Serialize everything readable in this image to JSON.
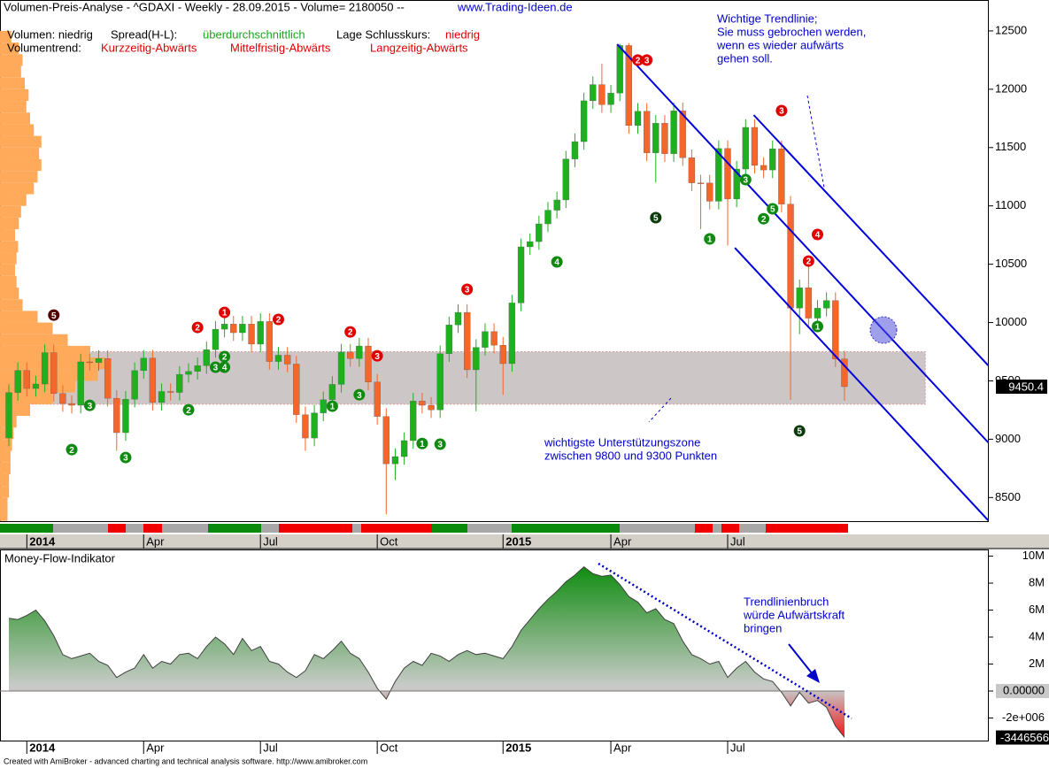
{
  "header": {
    "title": "Volumen-Preis-Analyse - ^GDAXI - Weekly - 28.09.2015 - Volume= 2180050 --",
    "website": "www.Trading-Ideen.de",
    "volume": "Volumen: niedrig",
    "spread_label": "Spread(H-L):",
    "spread_value": "überdurchschnittlich",
    "close_label": "Lage Schlusskurs:",
    "close_value": "niedrig",
    "trend_label": "Volumentrend:",
    "trend_short": "Kurzzeitig-Abwärts",
    "trend_mid": "Mittelfristig-Abwärts",
    "trend_long": "Langzeitig-Abwärts"
  },
  "footer": "Created with AmiBroker - advanced charting and technical analysis software. http://www.amibroker.com",
  "chart_data": [
    {
      "type": "candlestick",
      "categories": [
        null,
        null,
        "2014",
        null,
        null,
        null,
        null,
        null,
        null,
        null,
        null,
        null,
        null,
        null,
        null,
        "Apr",
        null,
        null,
        null,
        null,
        null,
        null,
        null,
        null,
        null,
        null,
        null,
        null,
        "Jul",
        null,
        null,
        null,
        null,
        null,
        null,
        null,
        null,
        null,
        null,
        null,
        null,
        "Oct",
        null,
        null,
        null,
        null,
        null,
        null,
        null,
        null,
        null,
        null,
        null,
        null,
        null,
        "2015",
        null,
        null,
        null,
        null,
        null,
        null,
        null,
        null,
        null,
        null,
        null,
        "Apr",
        null,
        null,
        null,
        null,
        null,
        null,
        null,
        null,
        null,
        null,
        null,
        null,
        "Jul",
        null,
        null,
        null,
        null,
        null,
        null,
        null,
        null,
        null,
        null,
        null,
        null,
        null
      ],
      "open": [
        9010,
        9400,
        9589,
        9435,
        9473,
        9742,
        9392,
        9306,
        9291,
        9663,
        9657,
        9692,
        9351,
        9056,
        9343,
        9588,
        9695,
        9315,
        9409,
        9401,
        9556,
        9581,
        9630,
        9768,
        9943,
        9987,
        9913,
        9987,
        9815,
        10009,
        9666,
        9720,
        9644,
        9210,
        9010,
        9225,
        9339,
        9470,
        9747,
        9691,
        9799,
        9490,
        9195,
        8788,
        8851,
        8988,
        9327,
        9291,
        9252,
        9733,
        9980,
        10087,
        9595,
        9787,
        9923,
        9806,
        9648,
        10168,
        10649,
        10694,
        10846,
        10963,
        11051,
        11402,
        11551,
        11901,
        12040,
        11868,
        11967,
        12375,
        11689,
        11811,
        11454,
        11709,
        11447,
        11815,
        11413,
        11197,
        11196,
        11040,
        11492,
        11059,
        11316,
        11673,
        11347,
        11308,
        11490,
        11015,
        10124,
        10298,
        10038,
        10123,
        10189,
        9688
      ],
      "high": [
        9470,
        9659,
        9659,
        9543,
        9812,
        9812,
        9462,
        9376,
        9733,
        9733,
        9762,
        9762,
        9421,
        9413,
        9658,
        9765,
        9765,
        9479,
        9479,
        9626,
        9651,
        9700,
        9838,
        10013,
        10057,
        10057,
        10057,
        10057,
        10079,
        10079,
        9790,
        9790,
        9714,
        9280,
        9295,
        9409,
        9540,
        9817,
        9817,
        9869,
        9869,
        9560,
        9265,
        8921,
        9058,
        9397,
        9397,
        9361,
        9803,
        10050,
        10157,
        10157,
        9857,
        9993,
        9993,
        9876,
        10238,
        10719,
        10764,
        10916,
        11033,
        11121,
        11472,
        11621,
        11971,
        12110,
        12220,
        12037,
        12390,
        12395,
        11881,
        11881,
        11779,
        11779,
        11885,
        11885,
        11483,
        11267,
        11266,
        11562,
        11562,
        11386,
        11743,
        11743,
        11417,
        11560,
        11560,
        11085,
        10368,
        10500,
        10193,
        10259,
        10259,
        9758
      ],
      "low": [
        8940,
        9330,
        9365,
        9365,
        9403,
        9322,
        9236,
        9221,
        9221,
        9587,
        9587,
        9281,
        8900,
        8986,
        9273,
        9518,
        9245,
        9245,
        9331,
        9331,
        9486,
        9511,
        9560,
        9698,
        9873,
        9843,
        9843,
        9745,
        9745,
        9596,
        9596,
        9574,
        9140,
        8900,
        8940,
        9155,
        9269,
        9400,
        9621,
        9621,
        9420,
        9125,
        8355,
        8650,
        8781,
        8918,
        9221,
        9182,
        9182,
        9663,
        9910,
        9525,
        9240,
        9717,
        9736,
        9380,
        9578,
        10098,
        10579,
        10624,
        10776,
        10893,
        10981,
        11332,
        11481,
        11831,
        11798,
        11798,
        11897,
        11619,
        11619,
        11384,
        11200,
        11377,
        11377,
        11343,
        11127,
        10800,
        10970,
        10970,
        10660,
        10989,
        11246,
        11277,
        11238,
        11238,
        10945,
        9338,
        9900,
        9968,
        9968,
        10053,
        9618,
        9330
      ],
      "close": [
        9400,
        9589,
        9435,
        9473,
        9742,
        9392,
        9306,
        9291,
        9663,
        9657,
        9692,
        9351,
        9056,
        9343,
        9588,
        9695,
        9315,
        9409,
        9401,
        9556,
        9581,
        9630,
        9768,
        9943,
        9987,
        9913,
        9987,
        9815,
        10009,
        9666,
        9720,
        9644,
        9210,
        9010,
        9225,
        9339,
        9470,
        9747,
        9691,
        9799,
        9490,
        9195,
        8788,
        8851,
        8988,
        9327,
        9291,
        9252,
        9733,
        9980,
        10087,
        9595,
        9787,
        9923,
        9806,
        9648,
        10168,
        10649,
        10694,
        10846,
        10963,
        11051,
        11402,
        11551,
        11901,
        12040,
        11868,
        11967,
        12375,
        11689,
        11811,
        11454,
        11709,
        11447,
        11815,
        11413,
        11197,
        11196,
        11040,
        11492,
        11059,
        11316,
        11673,
        11347,
        11308,
        11490,
        11015,
        10124,
        10298,
        10038,
        10123,
        10189,
        9688,
        9450.4
      ],
      "up_color": "#1fb01f",
      "down_color": "#f4662a",
      "ylim": [
        8290,
        12765
      ],
      "yticks": [
        8500,
        9000,
        9500,
        10000,
        10500,
        11000,
        11500,
        12000,
        12500
      ],
      "volume_profile": {
        "color": "#ffaa5a",
        "bins": [
          8300,
          8400,
          8500,
          8600,
          8700,
          8800,
          8900,
          9000,
          9100,
          9200,
          9300,
          9400,
          9500,
          9600,
          9700,
          9800,
          9900,
          10000,
          10100,
          10200,
          10300,
          10400,
          10500,
          10600,
          10700,
          10800,
          10900,
          11000,
          11100,
          11200,
          11300,
          11400,
          11500,
          11600,
          11700,
          11800,
          11900,
          12000,
          12100,
          12200,
          12300,
          12400,
          12500
        ],
        "values": [
          10,
          10,
          12,
          12,
          14,
          14,
          16,
          18,
          22,
          40,
          70,
          100,
          130,
          140,
          120,
          90,
          70,
          50,
          30,
          25,
          22,
          20,
          22,
          24,
          20,
          25,
          28,
          35,
          45,
          50,
          55,
          52,
          55,
          45,
          40,
          35,
          38,
          33,
          28,
          30,
          25,
          15
        ]
      },
      "support_zone": {
        "low": 9300,
        "high": 9750,
        "end": 102,
        "color": "#cdc6c6"
      },
      "trendlines": [
        {
          "start": [
            82.9,
            11779
          ],
          "end": [
            109,
            9632
          ],
          "color": "#0000dd"
        },
        {
          "start": [
            67.7,
            12386
          ],
          "end": [
            109,
            8972
          ],
          "color": "#0000dd"
        },
        {
          "start": [
            80.8,
            10641
          ],
          "end": [
            109,
            8304
          ],
          "color": "#0000dd"
        }
      ],
      "signals": [
        {
          "i": 21,
          "price": 9958,
          "label": "2",
          "color": "#e00000"
        },
        {
          "i": 24,
          "price": 10087,
          "label": "1",
          "color": "#e00000"
        },
        {
          "i": 30,
          "price": 10027,
          "label": "2",
          "color": "#e00000"
        },
        {
          "i": 38,
          "price": 9920,
          "label": "2",
          "color": "#e00000"
        },
        {
          "i": 41,
          "price": 9715,
          "label": "3",
          "color": "#e00000"
        },
        {
          "i": 51,
          "price": 10285,
          "label": "3",
          "color": "#e00000"
        },
        {
          "i": 70,
          "price": 12250,
          "label": "2",
          "color": "#e00000"
        },
        {
          "i": 71,
          "price": 12250,
          "label": "3",
          "color": "#e00000"
        },
        {
          "i": 86,
          "price": 11817,
          "label": "3",
          "color": "#e00000"
        },
        {
          "i": 89,
          "price": 10527,
          "label": "2",
          "color": "#e00000"
        },
        {
          "i": 90,
          "price": 10755,
          "label": "4",
          "color": "#e00000"
        },
        {
          "i": 5,
          "price": 10064,
          "label": "5",
          "color": "#550000"
        },
        {
          "i": 7,
          "price": 8911,
          "label": "2",
          "color": "#108a10"
        },
        {
          "i": 9,
          "price": 9290,
          "label": "3",
          "color": "#108a10"
        },
        {
          "i": 13,
          "price": 8843,
          "label": "3",
          "color": "#108a10"
        },
        {
          "i": 20,
          "price": 9252,
          "label": "2",
          "color": "#108a10"
        },
        {
          "i": 23,
          "price": 9617,
          "label": "3",
          "color": "#108a10"
        },
        {
          "i": 24,
          "price": 9617,
          "label": "4",
          "color": "#108a10"
        },
        {
          "i": 24,
          "price": 9708,
          "label": "2",
          "color": "#108a10"
        },
        {
          "i": 36,
          "price": 9283,
          "label": "1",
          "color": "#108a10"
        },
        {
          "i": 39,
          "price": 9381,
          "label": "3",
          "color": "#108a10"
        },
        {
          "i": 46,
          "price": 8963,
          "label": "1",
          "color": "#108a10"
        },
        {
          "i": 48,
          "price": 8957,
          "label": "3",
          "color": "#108a10"
        },
        {
          "i": 61,
          "price": 10520,
          "label": "4",
          "color": "#108a10"
        },
        {
          "i": 72,
          "price": 10899,
          "label": "5",
          "color": "#0b3a0b"
        },
        {
          "i": 78,
          "price": 10717,
          "label": "1",
          "color": "#108a10"
        },
        {
          "i": 82,
          "price": 11225,
          "label": "3",
          "color": "#108a10"
        },
        {
          "i": 84,
          "price": 10890,
          "label": "2",
          "color": "#108a10"
        },
        {
          "i": 85,
          "price": 10975,
          "label": "5",
          "color": "#108a10"
        },
        {
          "i": 90,
          "price": 9966,
          "label": "1",
          "color": "#108a10"
        },
        {
          "i": 88,
          "price": 9071,
          "label": "5",
          "color": "#0b3a0b"
        }
      ],
      "trendline_note": [
        "Wichtige Trendlinie;",
        "Sie muss gebrochen werden,",
        "wenn es wieder aufwärts",
        "gehen soll."
      ],
      "zone_note": [
        "wichtigste Unterstützungszone",
        "zwischen 9800 und 9300 Punkten"
      ]
    },
    {
      "type": "area",
      "title": "Money-Flow-Indikator",
      "categories": [
        null,
        null,
        "2014",
        null,
        null,
        null,
        null,
        null,
        null,
        null,
        null,
        null,
        null,
        null,
        null,
        "Apr",
        null,
        null,
        null,
        null,
        null,
        null,
        null,
        null,
        null,
        null,
        null,
        null,
        "Jul",
        null,
        null,
        null,
        null,
        null,
        null,
        null,
        null,
        null,
        null,
        null,
        null,
        "Oct",
        null,
        null,
        null,
        null,
        null,
        null,
        null,
        null,
        null,
        null,
        null,
        null,
        null,
        "2015",
        null,
        null,
        null,
        null,
        null,
        null,
        null,
        null,
        null,
        null,
        null,
        "Apr",
        null,
        null,
        null,
        null,
        null,
        null,
        null,
        null,
        null,
        null,
        null,
        null,
        "Jul",
        null,
        null,
        null,
        null,
        null,
        null,
        null,
        null,
        null,
        null,
        null,
        null,
        null
      ],
      "values": [
        5400000,
        5300000,
        5600000,
        6000000,
        5200000,
        4100000,
        2700000,
        2400000,
        2600000,
        2800000,
        2200000,
        1900000,
        1000000,
        1400000,
        1700000,
        2700000,
        1700000,
        2200000,
        2000000,
        2700000,
        2800000,
        2400000,
        3300000,
        4000000,
        3500000,
        2700000,
        3900000,
        3000000,
        3300000,
        2200000,
        2000000,
        1400000,
        1000000,
        1500000,
        2700000,
        2400000,
        3000000,
        3700000,
        2800000,
        2400000,
        1400000,
        200000,
        -600000,
        700000,
        1700000,
        2200000,
        1900000,
        2800000,
        2600000,
        2200000,
        2700000,
        3000000,
        2700000,
        2800000,
        2600000,
        2400000,
        3300000,
        4500000,
        5300000,
        6100000,
        6800000,
        7400000,
        8100000,
        8600000,
        9200000,
        8700000,
        8500000,
        8600000,
        7900000,
        7000000,
        6600000,
        5800000,
        6100000,
        5300000,
        5000000,
        3700000,
        2700000,
        2400000,
        2000000,
        2200000,
        1000000,
        1700000,
        2200000,
        1400000,
        900000,
        700000,
        -100000,
        -1100000,
        -100000,
        -900000,
        -700000,
        -1200000,
        -2600000,
        -3446566
      ],
      "ylim": [
        -3740000,
        10430000
      ],
      "yticks": [
        {
          "value": 10000000,
          "label": "10M"
        },
        {
          "value": 8000000,
          "label": "8M"
        },
        {
          "value": 6000000,
          "label": "6M"
        },
        {
          "value": 4000000,
          "label": "4M"
        },
        {
          "value": 2000000,
          "label": "2M"
        },
        {
          "value": 0,
          "label": "0.00000"
        },
        {
          "value": -2000000,
          "label": "-2e+006"
        }
      ],
      "note": [
        "Trendlinienbruch",
        "würde Aufwärtskraft",
        "bringen"
      ]
    }
  ]
}
